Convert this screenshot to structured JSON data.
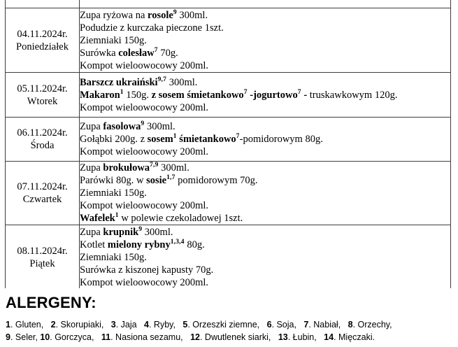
{
  "document": {
    "menu": {
      "rows": [
        {
          "date": "04.11.2024r.",
          "day": "Poniedziałek",
          "lines": [
            [
              {
                "t": "Zupa ryżowa na "
              },
              {
                "t": "rosole",
                "b": true
              },
              {
                "t": "9",
                "b": true,
                "sup": true
              },
              {
                "t": " 300ml."
              }
            ],
            [
              {
                "t": "Podudzie z kurczaka pieczone 1szt."
              }
            ],
            [
              {
                "t": "Ziemniaki 150g."
              }
            ],
            [
              {
                "t": "Surówka "
              },
              {
                "t": "colesław",
                "b": true
              },
              {
                "t": "7",
                "b": true,
                "sup": true
              },
              {
                "t": " 70g."
              }
            ],
            [
              {
                "t": "Kompot wieloowocowy 200ml."
              }
            ]
          ]
        },
        {
          "date": "05.11.2024r.",
          "day": "Wtorek",
          "lines": [
            [
              {
                "t": "Barszcz ukraiński",
                "b": true
              },
              {
                "t": "9,7",
                "b": true,
                "sup": true
              },
              {
                "t": " 300ml."
              }
            ],
            [
              {
                "t": "Makaron",
                "b": true
              },
              {
                "t": "1",
                "b": true,
                "sup": true
              },
              {
                "t": " 150g. "
              },
              {
                "t": "z sosem śmietankowo",
                "b": true
              },
              {
                "t": "7",
                "b": true,
                "sup": true
              },
              {
                "t": " -jogurtowo",
                "b": true
              },
              {
                "t": "7",
                "b": true,
                "sup": true
              },
              {
                "t": " - ",
                "b": true
              },
              {
                "t": "truskawkowym 120g."
              }
            ],
            [
              {
                "t": "Kompot wieloowocowy 200ml."
              }
            ]
          ]
        },
        {
          "date": "06.11.2024r.",
          "day": "Środa",
          "lines": [
            [
              {
                "t": "Zupa "
              },
              {
                "t": "fasolowa",
                "b": true
              },
              {
                "t": "9",
                "b": true,
                "sup": true
              },
              {
                "t": " 300ml."
              }
            ],
            [
              {
                "t": "Gołąbki 200g. z "
              },
              {
                "t": "sosem",
                "b": true
              },
              {
                "t": "1",
                "b": true,
                "sup": true
              },
              {
                "t": " śmietankowo",
                "b": true
              },
              {
                "t": "7",
                "b": true,
                "sup": true
              },
              {
                "t": "-pomidorowym 80g."
              }
            ],
            [
              {
                "t": "Kompot wieloowocowy 200ml."
              }
            ]
          ]
        },
        {
          "date": "07.11.2024r.",
          "day": "Czwartek",
          "lines": [
            [
              {
                "t": "Zupa "
              },
              {
                "t": "brokułowa",
                "b": true
              },
              {
                "t": "7,9",
                "b": true,
                "sup": true
              },
              {
                "t": " 300ml."
              }
            ],
            [
              {
                "t": "Parówki 80g. w "
              },
              {
                "t": "sosie",
                "b": true
              },
              {
                "t": "1,7",
                "b": true,
                "sup": true
              },
              {
                "t": " pomidorowym 70g."
              }
            ],
            [
              {
                "t": "Ziemniaki 150g."
              }
            ],
            [
              {
                "t": "Kompot wieloowocowy 200ml."
              }
            ],
            [
              {
                "t": "Wafelek",
                "b": true
              },
              {
                "t": "1",
                "b": true,
                "sup": true
              },
              {
                "t": " w polewie czekoladowej 1szt."
              }
            ]
          ]
        },
        {
          "date": "08.11.2024r.",
          "day": "Piątek",
          "lines": [
            [
              {
                "t": "Zupa "
              },
              {
                "t": "krupnik",
                "b": true
              },
              {
                "t": "9",
                "b": true,
                "sup": true
              },
              {
                "t": " 300ml."
              }
            ],
            [
              {
                "t": "Kotlet "
              },
              {
                "t": "mielony rybny",
                "b": true
              },
              {
                "t": "1,3,4",
                "b": true,
                "sup": true
              },
              {
                "t": " 80g."
              }
            ],
            [
              {
                "t": "Ziemniaki 150g."
              }
            ],
            [
              {
                "t": "Surówka z kiszonej kapusty 70g."
              }
            ],
            [
              {
                "t": "Kompot wieloowocowy 200ml."
              }
            ]
          ]
        }
      ]
    },
    "allergens": {
      "heading": "ALERGENY:",
      "lines": [
        [
          {
            "t": "1",
            "b": true
          },
          {
            "t": ". Gluten,   "
          },
          {
            "t": "2",
            "b": true
          },
          {
            "t": ". Skorupiaki,   "
          },
          {
            "t": "3",
            "b": true
          },
          {
            "t": ". Jaja   "
          },
          {
            "t": "4",
            "b": true
          },
          {
            "t": ". Ryby,   "
          },
          {
            "t": "5",
            "b": true
          },
          {
            "t": ". Orzeszki ziemne,   "
          },
          {
            "t": "6",
            "b": true
          },
          {
            "t": ". Soja,   "
          },
          {
            "t": "7",
            "b": true
          },
          {
            "t": ". Nabiał,   "
          },
          {
            "t": "8",
            "b": true
          },
          {
            "t": ". Orzechy,"
          }
        ],
        [
          {
            "t": "9",
            "b": true
          },
          {
            "t": ". Seler, "
          },
          {
            "t": "10",
            "b": true
          },
          {
            "t": ". Gorczyca,   "
          },
          {
            "t": "11",
            "b": true
          },
          {
            "t": ". Nasiona sezamu,   "
          },
          {
            "t": "12",
            "b": true
          },
          {
            "t": ". Dwutlenek siarki,   "
          },
          {
            "t": "13",
            "b": true
          },
          {
            "t": ". Łubin,   "
          },
          {
            "t": "14",
            "b": true
          },
          {
            "t": ". Mięczaki."
          }
        ]
      ]
    },
    "colors": {
      "border": "#3d3d3d",
      "text": "#000000",
      "background": "#ffffff"
    }
  }
}
